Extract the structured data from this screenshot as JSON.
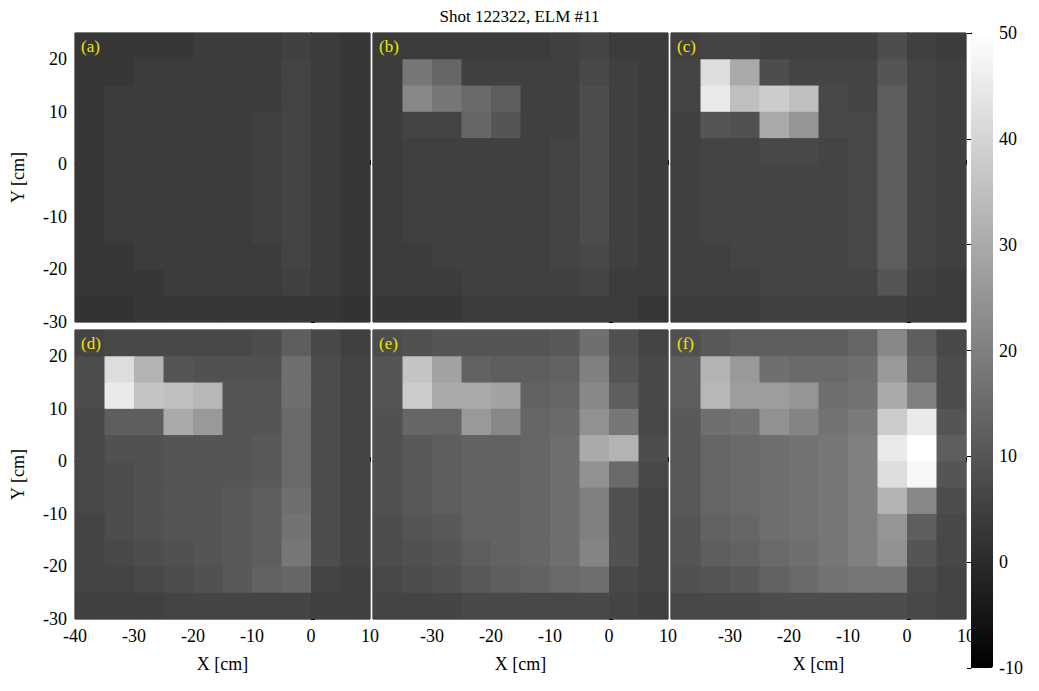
{
  "chart_data": {
    "type": "heatmap",
    "title": "Shot 122322, ELM #11",
    "x_label": "X [cm]",
    "y_label": "Y [cm]",
    "xlim": [
      -40,
      10
    ],
    "xticks": [
      -40,
      -30,
      -20,
      -10,
      0,
      10
    ],
    "ylim": [
      -30,
      25
    ],
    "yticks": [
      -30,
      -20,
      -10,
      0,
      10,
      20
    ],
    "x_edges": [
      -40,
      -35,
      -30,
      -25,
      -20,
      -15,
      -10,
      -5,
      0,
      5,
      10
    ],
    "y_edges": [
      25,
      20,
      15,
      10,
      5,
      0,
      -5,
      -10,
      -15,
      -20,
      -25,
      -30
    ],
    "colorbar_range": [
      -10,
      50
    ],
    "colorbar_ticks": [
      -10,
      0,
      10,
      20,
      30,
      40,
      50
    ],
    "panels": [
      {
        "label": "(a)",
        "cells": [
          [
            3,
            3,
            3,
            3,
            4,
            4,
            4,
            5,
            4,
            3
          ],
          [
            3,
            3,
            4,
            4,
            4,
            4,
            4,
            6,
            4,
            3
          ],
          [
            3,
            4,
            4,
            4,
            4,
            4,
            4,
            6,
            4,
            3
          ],
          [
            3,
            4,
            4,
            4,
            4,
            4,
            5,
            6,
            4,
            3
          ],
          [
            3,
            4,
            4,
            4,
            4,
            4,
            5,
            6,
            4,
            3
          ],
          [
            3,
            4,
            4,
            4,
            4,
            4,
            5,
            6,
            4,
            3
          ],
          [
            3,
            4,
            4,
            4,
            4,
            4,
            5,
            6,
            4,
            3
          ],
          [
            3,
            4,
            4,
            4,
            4,
            4,
            5,
            6,
            4,
            3
          ],
          [
            3,
            3,
            4,
            4,
            4,
            4,
            4,
            6,
            4,
            3
          ],
          [
            3,
            3,
            3,
            4,
            4,
            4,
            4,
            5,
            4,
            3
          ],
          [
            2,
            2,
            3,
            3,
            3,
            3,
            3,
            3,
            3,
            2
          ]
        ]
      },
      {
        "label": "(b)",
        "cells": [
          [
            4,
            4,
            4,
            4,
            4,
            4,
            5,
            6,
            4,
            4
          ],
          [
            4,
            18,
            14,
            5,
            5,
            5,
            5,
            7,
            5,
            4
          ],
          [
            4,
            22,
            18,
            15,
            12,
            5,
            5,
            8,
            5,
            4
          ],
          [
            4,
            6,
            6,
            14,
            10,
            5,
            5,
            8,
            5,
            4
          ],
          [
            4,
            5,
            5,
            5,
            5,
            5,
            6,
            8,
            5,
            4
          ],
          [
            4,
            5,
            5,
            5,
            5,
            5,
            6,
            8,
            5,
            4
          ],
          [
            4,
            5,
            5,
            5,
            5,
            5,
            6,
            8,
            5,
            4
          ],
          [
            4,
            5,
            5,
            5,
            5,
            5,
            6,
            8,
            5,
            4
          ],
          [
            4,
            4,
            5,
            5,
            5,
            5,
            6,
            7,
            5,
            4
          ],
          [
            4,
            4,
            4,
            5,
            5,
            5,
            5,
            6,
            4,
            4
          ],
          [
            3,
            3,
            3,
            4,
            4,
            4,
            4,
            4,
            4,
            3
          ]
        ]
      },
      {
        "label": "(c)",
        "cells": [
          [
            5,
            6,
            6,
            5,
            5,
            5,
            5,
            8,
            5,
            4
          ],
          [
            6,
            42,
            30,
            8,
            6,
            6,
            6,
            10,
            6,
            5
          ],
          [
            6,
            45,
            35,
            38,
            35,
            7,
            6,
            12,
            6,
            5
          ],
          [
            5,
            10,
            9,
            30,
            25,
            7,
            7,
            12,
            6,
            5
          ],
          [
            5,
            6,
            6,
            7,
            7,
            6,
            7,
            12,
            6,
            5
          ],
          [
            5,
            6,
            6,
            6,
            6,
            6,
            7,
            12,
            6,
            5
          ],
          [
            5,
            6,
            6,
            6,
            6,
            6,
            7,
            12,
            6,
            5
          ],
          [
            5,
            6,
            6,
            6,
            6,
            6,
            7,
            12,
            6,
            5
          ],
          [
            5,
            5,
            6,
            6,
            6,
            6,
            7,
            12,
            6,
            5
          ],
          [
            5,
            5,
            5,
            6,
            6,
            6,
            6,
            10,
            5,
            4
          ],
          [
            4,
            4,
            4,
            5,
            5,
            5,
            5,
            5,
            4,
            4
          ]
        ]
      },
      {
        "label": "(d)",
        "cells": [
          [
            6,
            7,
            7,
            7,
            7,
            7,
            8,
            12,
            7,
            5
          ],
          [
            8,
            42,
            32,
            10,
            9,
            9,
            9,
            16,
            8,
            6
          ],
          [
            8,
            45,
            36,
            35,
            33,
            10,
            10,
            16,
            8,
            6
          ],
          [
            7,
            12,
            12,
            30,
            26,
            10,
            10,
            15,
            8,
            6
          ],
          [
            7,
            9,
            9,
            10,
            10,
            10,
            11,
            15,
            8,
            6
          ],
          [
            7,
            8,
            9,
            10,
            10,
            10,
            11,
            15,
            8,
            6
          ],
          [
            7,
            8,
            9,
            10,
            10,
            11,
            12,
            16,
            8,
            6
          ],
          [
            6,
            8,
            9,
            10,
            10,
            11,
            12,
            17,
            8,
            6
          ],
          [
            6,
            7,
            8,
            9,
            10,
            11,
            12,
            18,
            8,
            6
          ],
          [
            6,
            6,
            7,
            8,
            9,
            11,
            13,
            14,
            6,
            5
          ],
          [
            5,
            5,
            5,
            6,
            6,
            6,
            6,
            6,
            5,
            5
          ]
        ]
      },
      {
        "label": "(e)",
        "cells": [
          [
            8,
            9,
            10,
            10,
            10,
            10,
            11,
            16,
            9,
            6
          ],
          [
            10,
            36,
            28,
            13,
            12,
            12,
            13,
            20,
            10,
            7
          ],
          [
            10,
            38,
            30,
            30,
            28,
            13,
            14,
            22,
            12,
            7
          ],
          [
            9,
            14,
            14,
            26,
            22,
            14,
            15,
            24,
            18,
            7
          ],
          [
            9,
            11,
            12,
            13,
            13,
            14,
            16,
            30,
            32,
            8
          ],
          [
            9,
            11,
            12,
            13,
            13,
            14,
            16,
            24,
            15,
            7
          ],
          [
            9,
            11,
            12,
            13,
            13,
            14,
            16,
            20,
            9,
            6
          ],
          [
            8,
            10,
            11,
            13,
            13,
            14,
            16,
            20,
            9,
            6
          ],
          [
            8,
            9,
            10,
            12,
            13,
            14,
            16,
            21,
            9,
            6
          ],
          [
            7,
            8,
            9,
            11,
            12,
            13,
            15,
            16,
            7,
            6
          ],
          [
            6,
            6,
            6,
            7,
            7,
            7,
            7,
            7,
            6,
            5
          ]
        ]
      },
      {
        "label": "(f)",
        "cells": [
          [
            9,
            11,
            12,
            12,
            12,
            12,
            14,
            22,
            12,
            7
          ],
          [
            12,
            32,
            26,
            16,
            15,
            15,
            16,
            26,
            14,
            8
          ],
          [
            12,
            33,
            27,
            27,
            25,
            16,
            17,
            30,
            20,
            8
          ],
          [
            11,
            16,
            17,
            24,
            21,
            17,
            19,
            38,
            45,
            10
          ],
          [
            11,
            14,
            15,
            16,
            17,
            18,
            20,
            45,
            50,
            12
          ],
          [
            11,
            14,
            15,
            16,
            17,
            18,
            20,
            42,
            48,
            10
          ],
          [
            11,
            14,
            15,
            16,
            17,
            18,
            20,
            32,
            22,
            8
          ],
          [
            10,
            13,
            14,
            16,
            17,
            18,
            20,
            25,
            12,
            7
          ],
          [
            10,
            12,
            13,
            15,
            16,
            18,
            20,
            24,
            10,
            7
          ],
          [
            9,
            10,
            11,
            13,
            15,
            17,
            18,
            18,
            8,
            6
          ],
          [
            7,
            7,
            7,
            8,
            8,
            8,
            8,
            8,
            7,
            6
          ]
        ]
      }
    ]
  }
}
